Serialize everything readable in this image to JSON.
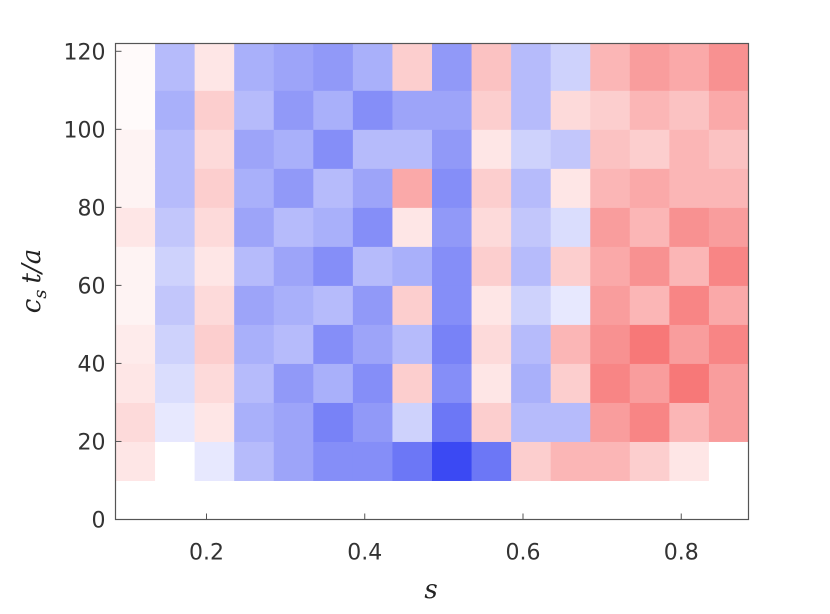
{
  "chart_data": {
    "type": "heatmap",
    "xlabel": "s",
    "ylabel_parts": [
      "c",
      "s",
      "t/a"
    ],
    "xlim": [
      0.085,
      0.885
    ],
    "ylim": [
      0,
      122
    ],
    "xticks": [
      0.2,
      0.4,
      0.6,
      0.8
    ],
    "yticks": [
      0,
      20,
      40,
      60,
      80,
      100,
      120
    ],
    "x": [
      0.085,
      0.135,
      0.185,
      0.235,
      0.285,
      0.335,
      0.385,
      0.435,
      0.485,
      0.535,
      0.585,
      0.635,
      0.685,
      0.735,
      0.785,
      0.835,
      0.885
    ],
    "y": [
      0,
      10,
      20,
      30,
      40,
      50,
      60,
      70,
      80,
      90,
      100,
      110,
      122
    ],
    "zlim": [
      -1,
      1
    ],
    "colors": [
      "#0a1cf0",
      "#ffffff",
      "#f00a0a"
    ],
    "z": [
      [
        0,
        0,
        0,
        0,
        0,
        0,
        0,
        0,
        0,
        0,
        0,
        0,
        0,
        0,
        0,
        0
      ],
      [
        0.1,
        0,
        -0.1,
        -0.3,
        -0.4,
        -0.5,
        -0.5,
        -0.6,
        -0.8,
        -0.6,
        0.2,
        0.3,
        0.3,
        0.2,
        0.1,
        0
      ],
      [
        0.15,
        -0.1,
        0.1,
        -0.35,
        -0.4,
        -0.55,
        -0.45,
        -0.2,
        -0.6,
        0.2,
        -0.3,
        -0.3,
        0.4,
        0.5,
        0.3,
        0.4
      ],
      [
        0.1,
        -0.15,
        0.15,
        -0.3,
        -0.45,
        -0.35,
        -0.5,
        0.2,
        -0.5,
        0.1,
        -0.35,
        0.2,
        0.5,
        0.4,
        0.55,
        0.4
      ],
      [
        0.08,
        -0.2,
        0.2,
        -0.35,
        -0.3,
        -0.5,
        -0.4,
        -0.3,
        -0.55,
        0.15,
        -0.3,
        0.3,
        0.45,
        0.55,
        0.4,
        0.5
      ],
      [
        0.05,
        -0.25,
        0.15,
        -0.4,
        -0.35,
        -0.3,
        -0.45,
        0.2,
        -0.5,
        0.1,
        -0.2,
        -0.1,
        0.4,
        0.3,
        0.5,
        0.35
      ],
      [
        0.05,
        -0.2,
        0.1,
        -0.3,
        -0.4,
        -0.5,
        -0.3,
        -0.35,
        -0.5,
        0.2,
        -0.3,
        0.2,
        0.35,
        0.45,
        0.3,
        0.5
      ],
      [
        0.1,
        -0.25,
        0.15,
        -0.4,
        -0.3,
        -0.35,
        -0.5,
        0.1,
        -0.45,
        0.15,
        -0.25,
        -0.15,
        0.4,
        0.3,
        0.45,
        0.4
      ],
      [
        0.05,
        -0.3,
        0.2,
        -0.35,
        -0.45,
        -0.3,
        -0.4,
        0.35,
        -0.5,
        0.2,
        -0.3,
        0.1,
        0.3,
        0.35,
        0.3,
        0.3
      ],
      [
        0.05,
        -0.3,
        0.15,
        -0.4,
        -0.35,
        -0.5,
        -0.3,
        -0.3,
        -0.45,
        0.1,
        -0.2,
        -0.25,
        0.25,
        0.2,
        0.3,
        0.25
      ],
      [
        0.02,
        -0.35,
        0.2,
        -0.3,
        -0.45,
        -0.35,
        -0.5,
        -0.4,
        -0.4,
        0.2,
        -0.3,
        0.15,
        0.2,
        0.3,
        0.25,
        0.35
      ],
      [
        0.02,
        -0.3,
        0.1,
        -0.35,
        -0.4,
        -0.45,
        -0.35,
        0.2,
        -0.45,
        0.25,
        -0.3,
        -0.2,
        0.3,
        0.4,
        0.35,
        0.45
      ]
    ]
  }
}
